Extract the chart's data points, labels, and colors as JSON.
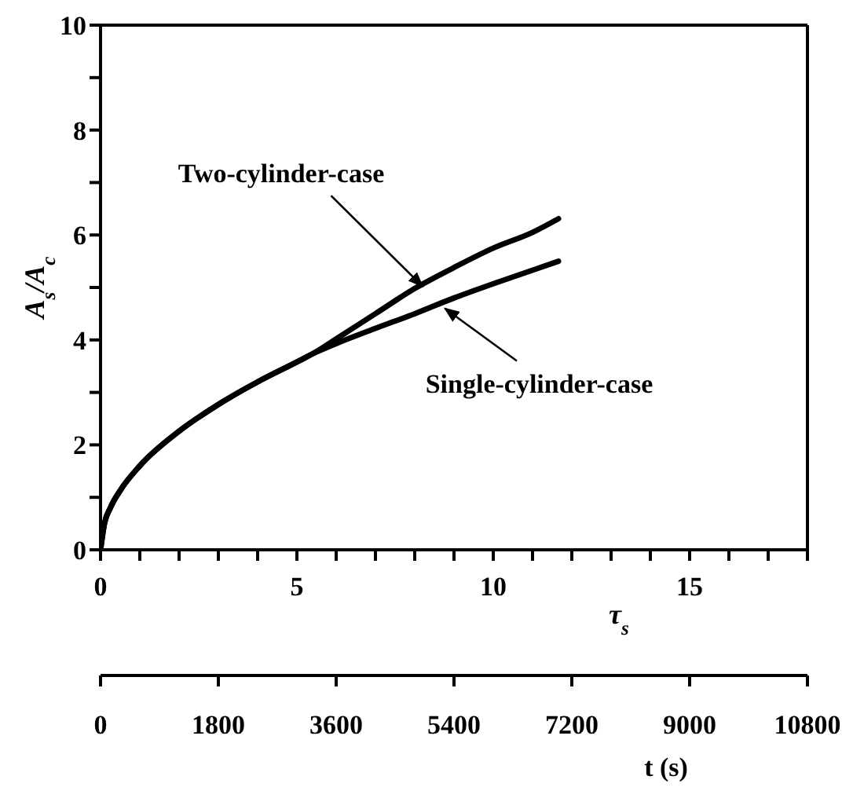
{
  "chart_data": {
    "type": "line",
    "xlabel": "τ$_{s}$",
    "ylabel": "A$_{s}$/A$_{c}$",
    "x2label": "t (s)",
    "xlim": [
      0,
      18
    ],
    "xticks": [
      0,
      {
        "value": 1,
        "label": null
      },
      {
        "value": 2,
        "label": null
      },
      {
        "value": 3,
        "label": null
      },
      {
        "value": 4,
        "label": null
      },
      5,
      {
        "value": 6,
        "label": null
      },
      {
        "value": 7,
        "label": null
      },
      {
        "value": 8,
        "label": null
      },
      {
        "value": 9,
        "label": null
      },
      10,
      {
        "value": 11,
        "label": null
      },
      {
        "value": 12,
        "label": null
      },
      {
        "value": 13,
        "label": null
      },
      {
        "value": 14,
        "label": null
      },
      15,
      {
        "value": 16,
        "label": null
      },
      {
        "value": 17,
        "label": null
      },
      {
        "value": 18,
        "label": null
      }
    ],
    "ylim": [
      0,
      10
    ],
    "yticks": [
      0,
      {
        "value": 1,
        "label": null
      },
      2,
      {
        "value": 3,
        "label": null
      },
      4,
      {
        "value": 5,
        "label": null
      },
      6,
      {
        "value": 7,
        "label": null
      },
      8,
      {
        "value": 9,
        "label": null
      },
      10
    ],
    "x2lim": [
      0,
      10800
    ],
    "x2ticks": [
      0,
      1800,
      3600,
      5400,
      7200,
      9000,
      10800
    ],
    "series": [
      {
        "name": "Two-cylinder-case",
        "color": "#000000",
        "x": [
          0,
          0.1,
          0.25,
          0.5,
          1,
          2,
          3,
          4,
          5,
          5.5,
          6,
          7,
          8,
          9,
          10,
          11,
          11.66
        ],
        "values": [
          0,
          0.5,
          0.8,
          1.13,
          1.6,
          2.26,
          2.77,
          3.2,
          3.58,
          3.78,
          4.02,
          4.5,
          4.98,
          5.38,
          5.75,
          6.05,
          6.31
        ]
      },
      {
        "name": "Single-cylinder-case",
        "color": "#000000",
        "x": [
          0,
          0.1,
          0.25,
          0.5,
          1,
          2,
          3,
          4,
          5,
          5.5,
          6,
          7,
          8,
          9,
          10,
          11,
          11.66
        ],
        "values": [
          0,
          0.5,
          0.8,
          1.13,
          1.6,
          2.26,
          2.77,
          3.2,
          3.58,
          3.77,
          3.93,
          4.22,
          4.5,
          4.8,
          5.07,
          5.33,
          5.5
        ]
      }
    ]
  }
}
